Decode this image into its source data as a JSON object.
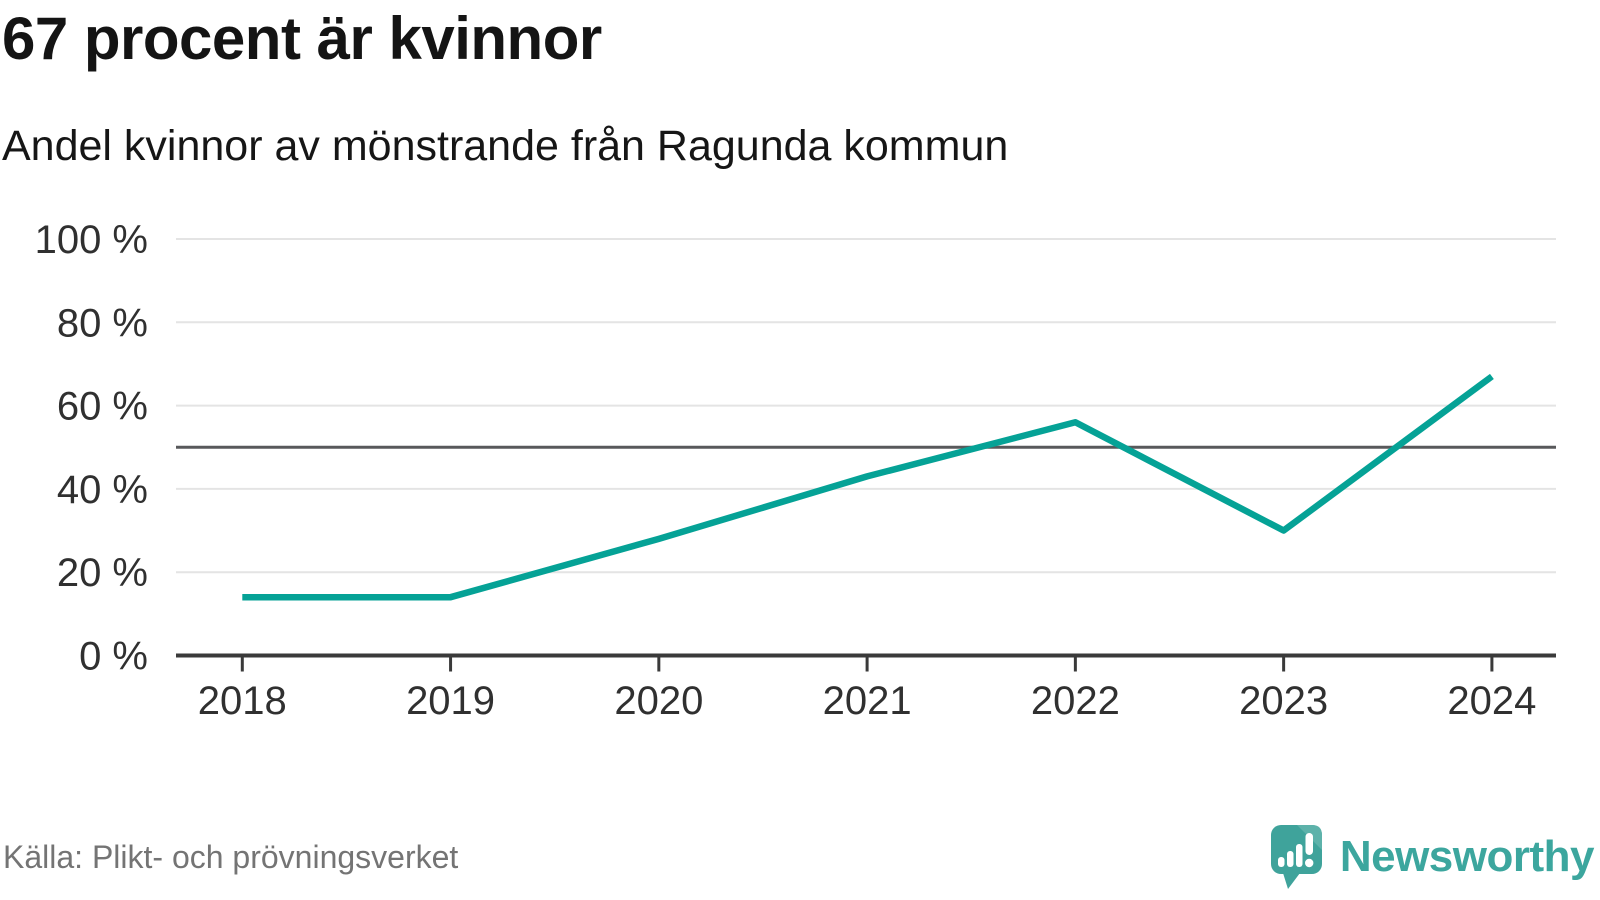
{
  "header": {
    "title": "67 procent är kvinnor",
    "subtitle": "Andel kvinnor av mönstrande från Ragunda kommun"
  },
  "chart_data": {
    "type": "line",
    "title": "67 procent är kvinnor",
    "subtitle": "Andel kvinnor av mönstrande från Ragunda kommun",
    "categories": [
      "2018",
      "2019",
      "2020",
      "2021",
      "2022",
      "2023",
      "2024"
    ],
    "series": [
      {
        "name": "Andel kvinnor av mönstrande",
        "values": [
          14,
          14,
          28,
          43,
          56,
          30,
          67
        ]
      }
    ],
    "unit": "%",
    "ylim": [
      0,
      100
    ],
    "yticks": [
      0,
      20,
      40,
      60,
      80,
      100
    ],
    "ytick_suffix": " %",
    "reference_line": 50,
    "grid": true,
    "legend": "none",
    "line_color": "#05a296",
    "reference_line_color": "#58595b",
    "gridline_color": "#e4e4e4",
    "axis_color": "#3a3a3a",
    "label_color": "#303030"
  },
  "footer": {
    "source": "Källa: Plikt- och prövningsverket",
    "brand": "Newsworthy",
    "brand_color": "#3ca69e"
  }
}
